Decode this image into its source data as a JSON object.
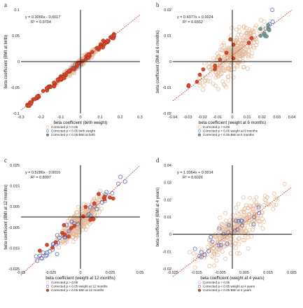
{
  "chart_data": [
    {
      "panel": "a",
      "type": "scatter",
      "xlabel": "beta coefficient (birth weight)",
      "ylabel": "beta coefficient (BMI at birth)",
      "xlim": [
        -0.3,
        0.3
      ],
      "ylim": [
        -0.1,
        0.1
      ],
      "xticks": [
        "-0.3",
        "-0.2",
        "-0.1",
        "0",
        "0.1",
        "0.2",
        "0.3"
      ],
      "yticks": [
        "-0.1",
        "-0.05",
        "0",
        "0.05",
        "0.1"
      ],
      "equation": "y = 0.3066x - 0.0017",
      "r2": "R² = 0.9704",
      "trend": {
        "slope": 0.3066,
        "intercept": -0.0017
      },
      "legend": [
        {
          "label": "Corrected p > 0.05",
          "marker": "beige-open"
        },
        {
          "label": "Corrected p < 0.05 birth weight",
          "marker": "blue-open"
        },
        {
          "label": "Corrected p < 0.05 BMI at birth",
          "marker": "green-filled"
        }
      ],
      "seed": 11,
      "counts": {
        "beige": 300,
        "red": 90,
        "blue": 8,
        "green": 0
      },
      "ranges": {
        "beige": [
          -0.12,
          0.12
        ],
        "red": [
          -0.27,
          0.17
        ],
        "blue": [
          -0.05,
          0.05
        ],
        "green": [
          0,
          0
        ]
      },
      "noise": 0.0035,
      "red_mode": "outer"
    },
    {
      "panel": "b",
      "type": "scatter",
      "xlabel": "beta coefficient (weight at 6 months)",
      "ylabel": "beta coefficient (BMI at 6 months)",
      "xlim": [
        -0.04,
        0.04
      ],
      "ylim": [
        -0.02,
        0.02
      ],
      "xticks": [
        "-0.04",
        "-0.03",
        "-0.02",
        "-0.01",
        "0",
        "0.01",
        "0.02",
        "0.03",
        "0.04"
      ],
      "yticks": [
        "-0.02",
        "-0.01",
        "0",
        "0.01",
        "0.02"
      ],
      "equation": "y = 0.4377x + 0.0024",
      "r2": "R² = 0.6552",
      "trend": {
        "slope": 0.4377,
        "intercept": 0.0024
      },
      "legend": [
        {
          "label": "Corrected p > 0.05",
          "marker": "beige-open"
        },
        {
          "label": "Corrected p < 0.05 weight at 6 months",
          "marker": "blue-open"
        },
        {
          "label": "Corrected p < 0.05 BMI at 6 months",
          "marker": "green-filled"
        }
      ],
      "seed": 23,
      "counts": {
        "beige": 320,
        "red": 14,
        "blue": 6,
        "green": 8
      },
      "ranges": {
        "beige": [
          -0.022,
          0.022
        ],
        "red": [
          -0.03,
          0.032
        ],
        "blue": [
          0.018,
          0.028
        ],
        "green": [
          0.018,
          0.026
        ]
      },
      "noise": 0.0035,
      "red_mode": "outer"
    },
    {
      "panel": "c",
      "type": "scatter",
      "xlabel": "beta coefficient (weight at 12 months)",
      "ylabel": "beta coefficient (BMI at 12 months)",
      "xlim": [
        -0.05,
        0.05
      ],
      "ylim": [
        -0.025,
        0.025
      ],
      "xticks": [
        "-0.05",
        "-0.025",
        "0",
        "0.025",
        "0.05"
      ],
      "yticks": [
        "-0.025",
        "-0.015",
        "-0.005",
        "0.005",
        "0.015",
        "0.025"
      ],
      "equation": "y = 0.5286x - 0.0016",
      "r2": "R² = 0.8097",
      "trend": {
        "slope": 0.5286,
        "intercept": -0.0016
      },
      "legend": [
        {
          "label": "Corrected p > 0.05",
          "marker": "beige-open"
        },
        {
          "label": "Corrected p < 0.05 weight at 12 months",
          "marker": "blue-open"
        },
        {
          "label": "Corrected p < 0.05 BMI at 12 months",
          "marker": "red-filled"
        }
      ],
      "seed": 37,
      "counts": {
        "beige": 280,
        "red": 22,
        "blue": 40,
        "green": 0
      },
      "ranges": {
        "beige": [
          -0.02,
          0.02
        ],
        "red": [
          -0.037,
          0.03
        ],
        "blue": [
          -0.038,
          0.04
        ],
        "green": [
          0,
          0
        ]
      },
      "noise": 0.003,
      "red_mode": "outer"
    },
    {
      "panel": "d",
      "type": "scatter",
      "xlabel": "beta coefficient (weight at 4 years)",
      "ylabel": "beta coefficient (BMI at 4 years)",
      "xlim": [
        -0.025,
        0.025
      ],
      "ylim": [
        -0.02,
        0.04
      ],
      "xticks": [
        "-0.025",
        "-0.015",
        "-0.005",
        "0.005",
        "0.015",
        "0.025"
      ],
      "yticks": [
        "-0.02",
        "-0.01",
        "0",
        "0.01",
        "0.02",
        "0.03",
        "0.04"
      ],
      "equation": "y = 1.0364x + 0.0014",
      "r2": "R² = 0.6026",
      "trend": {
        "slope": 1.0364,
        "intercept": 0.0014
      },
      "legend": [
        {
          "label": "Corrected p > 0.05",
          "marker": "beige-open"
        },
        {
          "label": "Corrected p < 0.05 weight at 4 years",
          "marker": "blue-open"
        },
        {
          "label": "Corrected p < 0.05 BMI at 4 years",
          "marker": "red-filled"
        }
      ],
      "seed": 53,
      "counts": {
        "beige": 300,
        "red": 0,
        "blue": 26,
        "green": 0
      },
      "ranges": {
        "beige": [
          -0.018,
          0.022
        ],
        "red": [
          0,
          0
        ],
        "blue": [
          -0.016,
          0.012
        ],
        "green": [
          0,
          0
        ]
      },
      "noise": 0.0055,
      "red_mode": "outer"
    }
  ],
  "colors": {
    "beige": "#e2b99a",
    "red": "#d9482a",
    "blue": "#5b6fc4",
    "green": "#6f9c8e",
    "trend": "#c0392b",
    "axis": "#111111"
  }
}
